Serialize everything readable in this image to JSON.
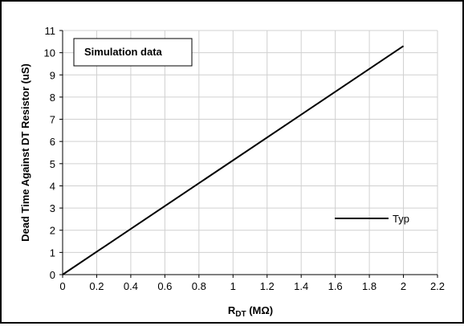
{
  "chart_data": {
    "type": "line",
    "annotation": "Simulation data",
    "xlabel_main": "R",
    "xlabel_sub": "DT",
    "xlabel_unit": " (MΩ)",
    "ylabel": "Dead Time Against DT Resistor (uS)",
    "xlim": [
      0,
      2.2
    ],
    "ylim": [
      0,
      11
    ],
    "x_ticks": [
      "0",
      "0.2",
      "0.4",
      "0.6",
      "0.8",
      "1",
      "1.2",
      "1.4",
      "1.6",
      "1.8",
      "2",
      "2.2"
    ],
    "y_ticks": [
      "0",
      "1",
      "2",
      "3",
      "4",
      "5",
      "6",
      "7",
      "8",
      "9",
      "10",
      "11"
    ],
    "grid": true,
    "legend_position": "right-lower",
    "series": [
      {
        "name": "Typ",
        "color": "#000000",
        "x": [
          0,
          2
        ],
        "y": [
          0,
          10.3
        ]
      }
    ]
  }
}
